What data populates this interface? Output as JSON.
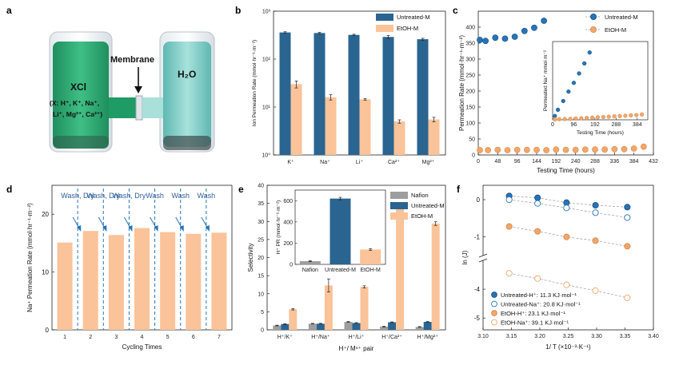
{
  "panel_letters": [
    "a",
    "b",
    "c",
    "d",
    "e",
    "f"
  ],
  "panel_a": {
    "left_label": "XCl",
    "left_sub1": "(X: H⁺, K⁺, Na⁺,",
    "left_sub2": "Li⁺, Mg²⁺, Ca²⁺)",
    "membrane": "Membrane",
    "right_label": "H₂O"
  },
  "colors": {
    "untreated": "#2a6491",
    "etoh": "#fac399",
    "nafion": "#9e9e9e",
    "blue_dot": "#2674b8",
    "orange_dot": "#f2a66a",
    "wash_text": "#2e5f9a"
  },
  "chart_data": [
    {
      "id": "b",
      "type": "bar",
      "ylabel": "Ion Permeation Rate (mmol·hr⁻¹·m⁻²)",
      "yscale": "log",
      "ylim": [
        1,
        1000
      ],
      "ytick_labels": [
        "10⁰",
        "10¹",
        "10²",
        "10³"
      ],
      "categories": [
        "K⁺",
        "Na⁺",
        "Li⁺",
        "Ca²⁺",
        "Mg²⁺"
      ],
      "series": [
        {
          "name": "Untreated-M",
          "values": [
            360,
            350,
            320,
            290,
            260
          ],
          "errors": [
            12,
            10,
            10,
            20,
            12
          ]
        },
        {
          "name": "EtOH-M",
          "values": [
            30,
            16,
            14.5,
            5,
            5.5
          ],
          "errors": [
            5,
            2,
            0.6,
            0.4,
            0.6
          ]
        }
      ]
    },
    {
      "id": "c",
      "type": "scatter",
      "xlabel": "Testing Time (hours)",
      "ylabel": "Permeation Rate (mmol·hr⁻¹·m⁻²)",
      "xlim": [
        0,
        432
      ],
      "ylim": [
        0,
        450
      ],
      "xticks": [
        0,
        48,
        96,
        144,
        192,
        240,
        288,
        336,
        384,
        432
      ],
      "yticks": [
        0,
        50,
        100,
        150,
        200,
        250,
        300,
        350,
        400
      ],
      "series": [
        {
          "name": "Untreated-M",
          "x": [
            4,
            18,
            42,
            66,
            90,
            114,
            138,
            162
          ],
          "y": [
            360,
            357,
            367,
            364,
            370,
            388,
            398,
            420
          ]
        },
        {
          "name": "EtOH-M",
          "x": [
            4,
            24,
            48,
            72,
            96,
            120,
            144,
            168,
            192,
            216,
            240,
            264,
            288,
            312,
            336,
            360,
            384,
            408
          ],
          "y": [
            15,
            15,
            16,
            15,
            16,
            16,
            16,
            15,
            17,
            16,
            16,
            17,
            17,
            17,
            18,
            18,
            20,
            26
          ]
        }
      ],
      "inset": {
        "xlabel": "Testing Time (hours)",
        "ylabel": "Permeated Na⁺ mmol·m⁻²",
        "xlim": [
          0,
          432
        ],
        "ylim": [
          0,
          250
        ],
        "xticks": [
          0,
          96,
          192,
          288,
          384
        ],
        "series": [
          {
            "name": "Untreated-M",
            "x": [
              10,
              24,
              48,
              72,
              96,
              120,
              144,
              168
            ],
            "y": [
              12,
              32,
              60,
              90,
              118,
              148,
              180,
              215
            ]
          },
          {
            "name": "EtOH-M",
            "x": [
              10,
              30,
              55,
              80,
              105,
              130,
              155,
              180,
              205,
              230,
              255,
              280,
              305,
              330,
              355,
              380,
              405
            ],
            "y": [
              1,
              2,
              2.5,
              3,
              4,
              5,
              6,
              7,
              8,
              9,
              10,
              11,
              12,
              13,
              14,
              15,
              17
            ]
          }
        ]
      }
    },
    {
      "id": "d",
      "type": "bar",
      "xlabel": "Cycling Times",
      "ylabel": "Na⁺ Permeation Rate (mmol·hr⁻¹·m⁻²)",
      "ylim": [
        0,
        25
      ],
      "yticks": [
        0,
        10,
        20
      ],
      "categories": [
        "1",
        "2",
        "3",
        "4",
        "5",
        "6",
        "7"
      ],
      "values": [
        15.1,
        17.1,
        16.4,
        17.6,
        16.9,
        16.6,
        16.8
      ],
      "annotations": [
        "Wash, Dry",
        "Wash, Dry",
        "Wash, Dry",
        "Wash",
        "Wash",
        "Wash"
      ]
    },
    {
      "id": "e",
      "type": "bar",
      "xlabel": "H⁺/ Mⁿ⁺ pair",
      "ylabel": "Selectivity",
      "ylim": [
        0,
        40
      ],
      "yticks": [
        0,
        5,
        10,
        15,
        20,
        25,
        30,
        35,
        40
      ],
      "categories": [
        "H⁺/K⁺",
        "H⁺/Na⁺",
        "H⁺/Li⁺",
        "H⁺/Ca²⁺",
        "H⁺/Mg²⁺"
      ],
      "series": [
        {
          "name": "Nafion",
          "values": [
            1.2,
            1.7,
            2.2,
            0.9,
            0.8
          ],
          "errors": [
            0.1,
            0.1,
            0.1,
            0.1,
            0.1
          ]
        },
        {
          "name": "Untreated-M",
          "values": [
            1.6,
            1.7,
            1.9,
            2.1,
            2.2
          ],
          "errors": [
            0.1,
            0.1,
            0.1,
            0.1,
            0.1
          ]
        },
        {
          "name": "EtOH-M",
          "values": [
            5.7,
            12.3,
            11.9,
            34.0,
            29.4
          ],
          "errors": [
            0.2,
            1.8,
            0.3,
            0.3,
            0.5
          ]
        }
      ],
      "inset": {
        "ylabel": "H⁺ PR (mmol·hr⁻¹·m⁻²)",
        "ylim": [
          0,
          700
        ],
        "yticks": [
          0,
          200,
          400,
          600
        ],
        "categories": [
          "Nafion",
          "Untreated-M",
          "EtOH-M"
        ],
        "values": [
          30,
          620,
          140
        ],
        "errors": [
          5,
          12,
          8
        ]
      }
    },
    {
      "id": "f",
      "type": "scatter",
      "xlabel": "1/ T (×10⁻³·K⁻¹)",
      "ylabel": "ln (J)",
      "xlim": [
        3.1,
        3.4
      ],
      "xticks": [
        3.1,
        3.15,
        3.2,
        3.25,
        3.3,
        3.35,
        3.4
      ],
      "xtick_labels": [
        "3.10",
        "3.15",
        "3.20",
        "3.25",
        "3.30",
        "3.35",
        "3.40"
      ],
      "yticks_upper": [
        0,
        -1
      ],
      "yticks_lower": [
        -4,
        -5
      ],
      "series": [
        {
          "name": "Untreated-H⁺: 11.3 KJ·mol⁻¹",
          "style": "filled-blue",
          "x": [
            3.146,
            3.196,
            3.247,
            3.298,
            3.354
          ],
          "y": [
            0.1,
            0.05,
            -0.08,
            -0.15,
            -0.2
          ]
        },
        {
          "name": "Untreated-Na⁺: 20.8 KJ·mol⁻¹",
          "style": "open-blue",
          "x": [
            3.146,
            3.196,
            3.247,
            3.298,
            3.354
          ],
          "y": [
            0.0,
            -0.1,
            -0.22,
            -0.35,
            -0.48
          ]
        },
        {
          "name": "EtOH-H⁺: 23.1 KJ·mol⁻¹",
          "style": "filled-orange",
          "x": [
            3.146,
            3.196,
            3.247,
            3.298,
            3.354
          ],
          "y": [
            -0.72,
            -0.85,
            -1.0,
            -1.1,
            -1.25
          ]
        },
        {
          "name": "EtOH-Na⁺: 39.1 KJ·mol⁻¹",
          "style": "open-orange",
          "x": [
            3.146,
            3.196,
            3.247,
            3.298,
            3.354
          ],
          "y": [
            -3.45,
            -3.63,
            -3.85,
            -4.05,
            -4.3
          ]
        }
      ]
    }
  ]
}
